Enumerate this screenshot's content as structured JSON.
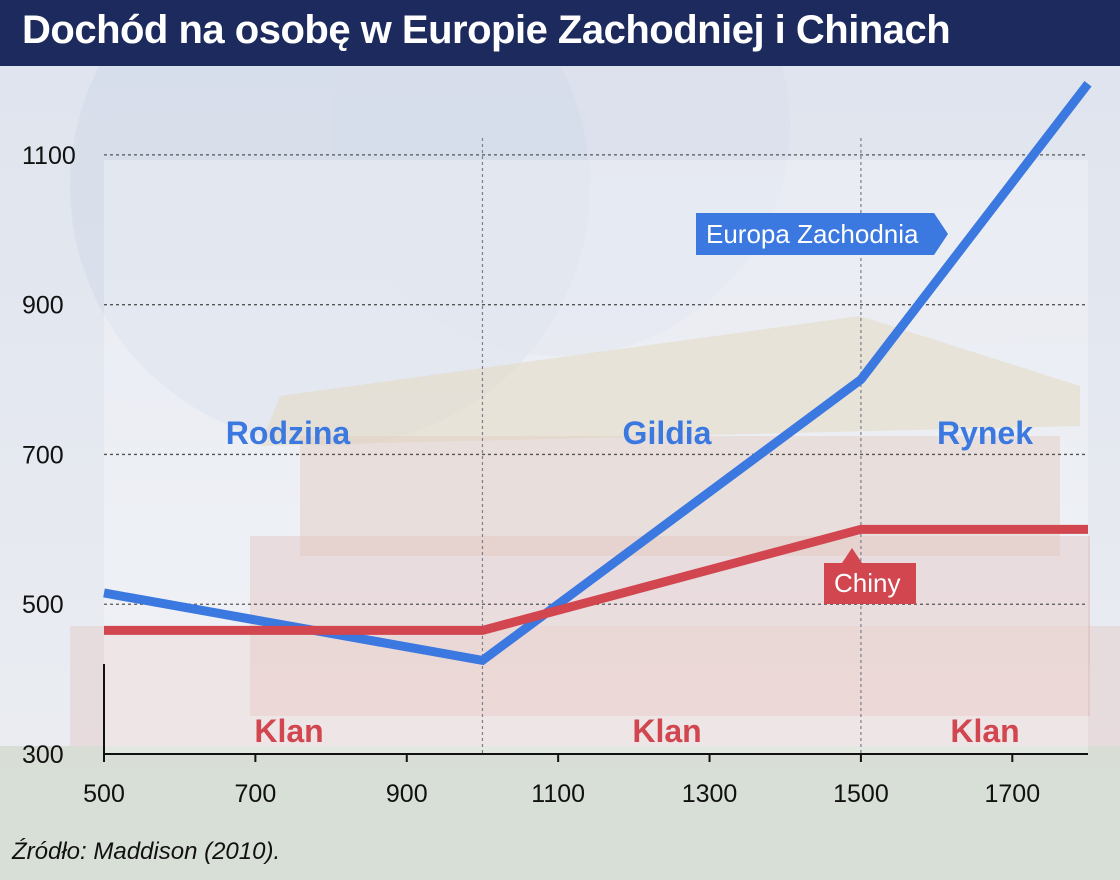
{
  "title": "Dochód na osobę w Europie Zachodniej i Chinach",
  "source": "Źródło: Maddison (2010).",
  "colors": {
    "title_bg": "#1c2a5e",
    "europe": "#3b78e0",
    "china": "#d1464f",
    "grid": "#555555"
  },
  "chart_data": {
    "type": "line",
    "title": "Dochód na osobę w Europie Zachodniej i Chinach",
    "xlim": [
      500,
      1800
    ],
    "ylim": [
      300,
      1200
    ],
    "x_ticks": [
      "500",
      "700",
      "900",
      "1100",
      "1300",
      "1500",
      "1700"
    ],
    "x_tick_values": [
      500,
      700,
      900,
      1100,
      1300,
      1500,
      1700
    ],
    "y_ticks": [
      "300",
      "500",
      "700",
      "900",
      "1100"
    ],
    "y_tick_values": [
      300,
      500,
      700,
      900,
      1100
    ],
    "grid": "horizontal dotted at y ticks; vertical dotted at 1000 and 1500",
    "series": [
      {
        "name": "Europa Zachodnia",
        "color": "#3b78e0",
        "x": [
          500,
          1000,
          1500,
          1800
        ],
        "y": [
          515,
          425,
          800,
          1195
        ]
      },
      {
        "name": "Chiny",
        "color": "#d1464f",
        "x": [
          500,
          1000,
          1500,
          1800
        ],
        "y": [
          465,
          465,
          600,
          600
        ]
      }
    ],
    "era_labels": {
      "europe": [
        "Rodzina",
        "Gildia",
        "Rynek"
      ],
      "china": [
        "Klan",
        "Klan",
        "Klan"
      ]
    }
  }
}
